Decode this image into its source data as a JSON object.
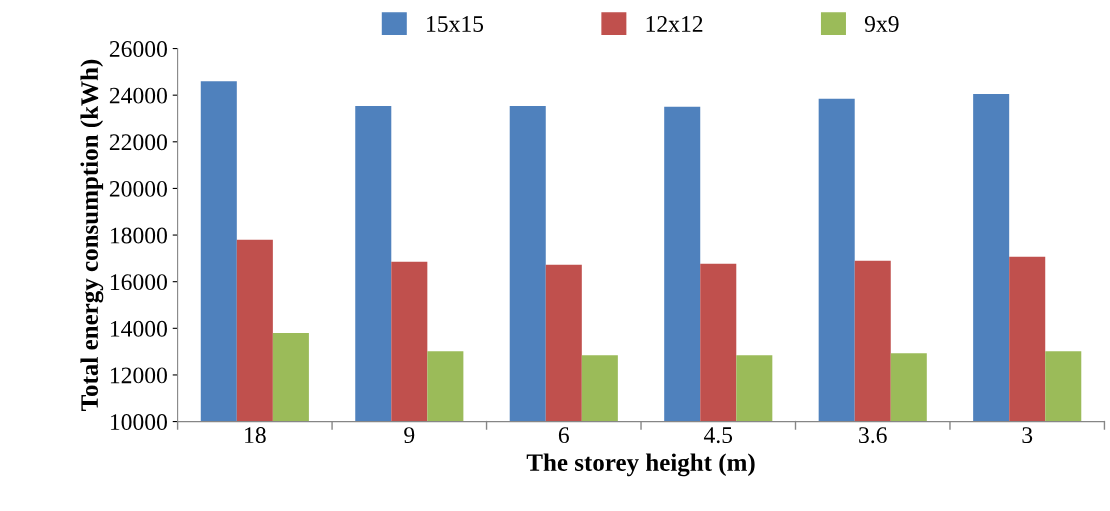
{
  "chart_data": {
    "type": "bar",
    "xlabel": "The storey height (m)",
    "ylabel": "Total energy consumption (kWh)",
    "categories": [
      "18",
      "9",
      "6",
      "4.5",
      "3.6",
      "3"
    ],
    "series": [
      {
        "name": "15x15",
        "color": "#4f81bd",
        "values": [
          24600,
          23540,
          23540,
          23500,
          23850,
          24050
        ]
      },
      {
        "name": "12x12",
        "color": "#c0504d",
        "values": [
          17800,
          16860,
          16730,
          16770,
          16900,
          17070
        ]
      },
      {
        "name": "9x9",
        "color": "#9bbb59",
        "values": [
          13800,
          13020,
          12850,
          12850,
          12930,
          13020
        ]
      }
    ],
    "ylim": [
      10000,
      26000
    ],
    "yticks": [
      10000,
      12000,
      14000,
      16000,
      18000,
      20000,
      22000,
      24000,
      26000
    ],
    "grid": false,
    "legend": "top"
  }
}
